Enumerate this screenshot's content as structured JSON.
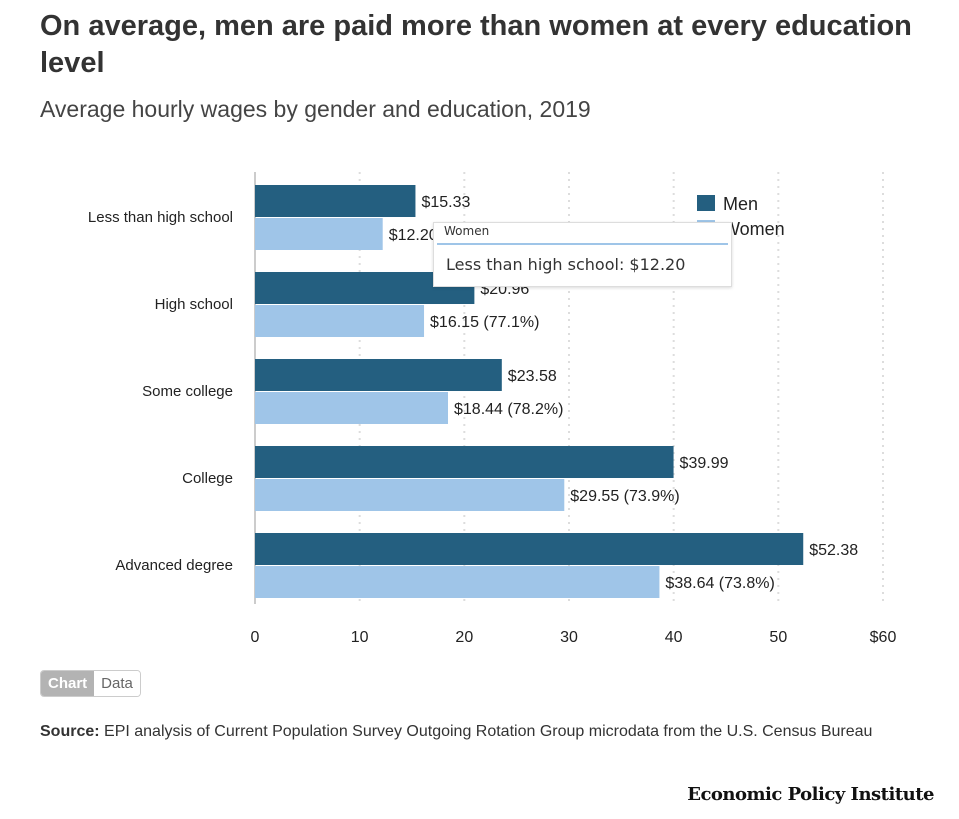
{
  "title": "On average, men are paid more than women at every education level",
  "subtitle": "Average hourly wages by gender and education, 2019",
  "chart_data": {
    "type": "bar",
    "orientation": "horizontal",
    "categories": [
      "Less than high school",
      "High school",
      "Some college",
      "College",
      "Advanced degree"
    ],
    "series": [
      {
        "name": "Men",
        "color": "#245f80",
        "values": [
          15.33,
          20.96,
          23.58,
          39.99,
          52.38
        ],
        "labels": [
          "$15.33",
          "$20.96",
          "$23.58",
          "$39.99",
          "$52.38"
        ]
      },
      {
        "name": "Women",
        "color": "#9fc5e8",
        "values": [
          12.2,
          16.15,
          18.44,
          29.55,
          38.64
        ],
        "labels": [
          "$12.20",
          "$16.15 (77.1%)",
          "$18.44 (78.2%)",
          "$29.55 (73.9%)",
          "$38.64 (73.8%)"
        ]
      }
    ],
    "xlim": [
      0,
      60
    ],
    "xticks": [
      "0",
      "10",
      "20",
      "30",
      "40",
      "50",
      "$60"
    ],
    "grid": true,
    "legend": "top-right"
  },
  "tooltip": {
    "series": "Women",
    "text": "Less than high school: $12.20"
  },
  "toggle": {
    "chart": "Chart",
    "data": "Data"
  },
  "source": {
    "label": "Source:",
    "text": " EPI analysis of Current Population Survey Outgoing Rotation Group microdata from the U.S. Census Bureau"
  },
  "logo": "Economic Policy Institute"
}
